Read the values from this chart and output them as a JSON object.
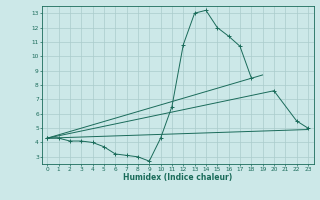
{
  "xlabel": "Humidex (Indice chaleur)",
  "bg_color": "#cce8e8",
  "grid_color": "#aacccc",
  "line_color": "#1a6b5a",
  "xlim": [
    -0.5,
    23.5
  ],
  "ylim": [
    2.5,
    13.5
  ],
  "xticks": [
    0,
    1,
    2,
    3,
    4,
    5,
    6,
    7,
    8,
    9,
    10,
    11,
    12,
    13,
    14,
    15,
    16,
    17,
    18,
    19,
    20,
    21,
    22,
    23
  ],
  "yticks": [
    3,
    4,
    5,
    6,
    7,
    8,
    9,
    10,
    11,
    12,
    13
  ],
  "series1_x": [
    0,
    1,
    2,
    3,
    4,
    5,
    6,
    7,
    8,
    9,
    10,
    11,
    12,
    13,
    14,
    15,
    16,
    17,
    18
  ],
  "series1_y": [
    4.3,
    4.3,
    4.1,
    4.1,
    4.0,
    3.7,
    3.2,
    3.1,
    3.0,
    2.7,
    4.3,
    6.5,
    10.8,
    13.0,
    13.2,
    12.0,
    11.4,
    10.7,
    8.5
  ],
  "series2_x": [
    0,
    19
  ],
  "series2_y": [
    4.3,
    8.7
  ],
  "series3_x": [
    0,
    20,
    22,
    23
  ],
  "series3_y": [
    4.3,
    7.6,
    5.5,
    5.0
  ],
  "series4_x": [
    0,
    23
  ],
  "series4_y": [
    4.3,
    4.9
  ]
}
